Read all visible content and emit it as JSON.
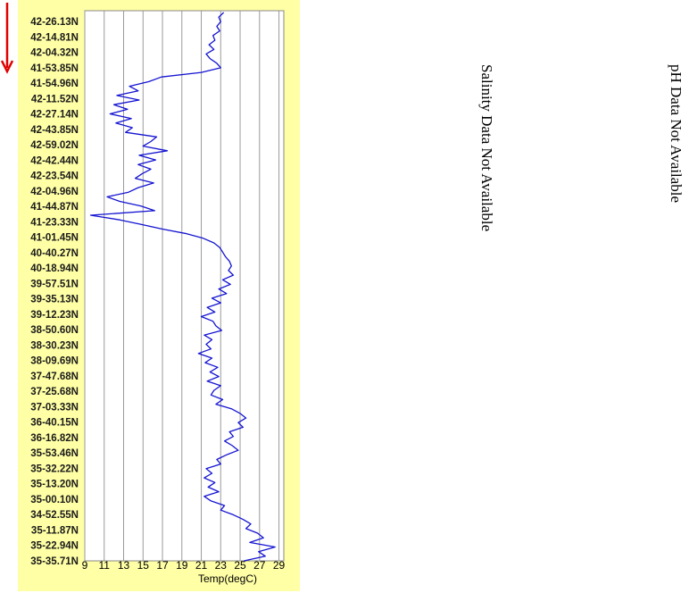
{
  "chart_data": {
    "type": "line",
    "xlabel": "Temp(degC)",
    "x_ticks": [
      9,
      11,
      13,
      15,
      17,
      19,
      21,
      23,
      25,
      27,
      29
    ],
    "xlim": [
      9,
      29.5
    ],
    "grid": "vertical",
    "y_orientation": "vertical track, first position label at top",
    "y_tick_labels": [
      "42-26.13N",
      "42-14.81N",
      "42-04.32N",
      "41-53.85N",
      "41-54.96N",
      "42-11.52N",
      "42-27.14N",
      "42-43.85N",
      "42-59.02N",
      "42-42.44N",
      "42-23.54N",
      "42-04.96N",
      "41-44.87N",
      "41-23.33N",
      "41-01.45N",
      "40-40.27N",
      "40-18.94N",
      "39-57.51N",
      "39-35.13N",
      "39-12.23N",
      "38-50.60N",
      "38-30.23N",
      "38-09.69N",
      "37-47.68N",
      "37-25.68N",
      "37-03.33N",
      "36-40.15N",
      "36-16.82N",
      "35-53.46N",
      "35-32.22N",
      "35-13.20N",
      "35-00.10N",
      "34-52.55N",
      "35-11.87N",
      "35-22.94N",
      "35-35.71N"
    ],
    "series": [
      {
        "color": "#1414d2",
        "temperature": [
          23.3,
          22.8,
          23.0,
          22.6,
          22.9,
          22.2,
          22.4,
          21.8,
          22.3,
          21.5,
          21.9,
          22.6,
          23.0,
          21.0,
          16.9,
          15.6,
          13.6,
          14.5,
          12.3,
          14.6,
          12.0,
          13.4,
          11.6,
          13.8,
          12.2,
          13.9,
          13.2,
          16.4,
          15.8,
          15.0,
          17.5,
          14.6,
          16.3,
          14.5,
          15.8,
          14.9,
          14.2,
          16.1,
          14.5,
          13.5,
          11.3,
          12.6,
          14.8,
          16.2,
          9.6,
          12.6,
          14.8,
          17.0,
          19.5,
          21.2,
          22.3,
          22.9,
          23.2,
          23.5,
          23.9,
          24.1,
          23.8,
          24.3,
          23.2,
          24.0,
          22.8,
          23.6,
          22.1,
          23.0,
          21.6,
          22.4,
          21.0,
          22.2,
          22.5,
          23.1,
          21.3,
          22.1,
          21.5,
          22.0,
          20.7,
          22.1,
          21.4,
          22.7,
          21.9,
          22.8,
          21.6,
          23.0,
          22.3,
          22.0,
          23.2,
          22.5,
          24.1,
          25.0,
          25.6,
          24.8,
          25.3,
          23.9,
          24.3,
          23.4,
          24.2,
          24.8,
          23.6,
          22.6,
          23.0,
          21.5,
          22.1,
          21.3,
          22.4,
          21.7,
          22.8,
          21.3,
          22.0,
          23.4,
          23.0,
          24.3,
          25.3,
          26.1,
          25.6,
          26.8,
          27.4,
          26.0,
          28.6,
          26.9,
          27.6,
          25.4
        ]
      }
    ]
  },
  "annotations": {
    "salinity_text": "Salinity Data Not Available",
    "ph_text": "pH Data Not Available",
    "arrow_color": "#e00000"
  }
}
